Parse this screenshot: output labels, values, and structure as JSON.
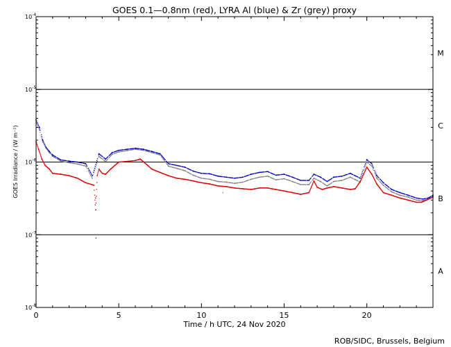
{
  "chart_data": {
    "type": "scatter",
    "title": "GOES 0.1—0.8nm (red), LYRA Al (blue) & Zr (grey) proxy",
    "xlabel": "Time / h UTC, 24 Nov 2020",
    "ylabel": "GOES Irradiance / (W m⁻²)",
    "credit": "ROB/SIDC, Brussels, Belgium",
    "xlim": [
      0,
      24
    ],
    "ylim_log10": [
      -8,
      -4
    ],
    "y_scale": "log",
    "x_ticks": [
      0,
      5,
      10,
      15,
      20
    ],
    "x_tick_labels": [
      "0",
      "5",
      "10",
      "15",
      "20"
    ],
    "y_ticks_log10": [
      -8,
      -7,
      -6,
      -5,
      -4
    ],
    "y_tick_labels": [
      {
        "base": "10",
        "exp": "-8"
      },
      {
        "base": "10",
        "exp": "-7"
      },
      {
        "base": "10",
        "exp": "-6"
      },
      {
        "base": "10",
        "exp": "-5"
      },
      {
        "base": "10",
        "exp": "-4"
      }
    ],
    "class_lines_log10": [
      -7,
      -6,
      -5
    ],
    "flare_classes": [
      {
        "label": "A",
        "log10": -7.5
      },
      {
        "label": "B",
        "log10": -6.5
      },
      {
        "label": "C",
        "log10": -5.5
      },
      {
        "label": "M",
        "log10": -4.5
      }
    ],
    "series": [
      {
        "name": "GOES 0.1-0.8nm",
        "color": "#e00000",
        "x": [
          0.0,
          0.15,
          0.35,
          0.55,
          0.8,
          1.0,
          1.5,
          2.0,
          2.5,
          3.0,
          3.5,
          3.6,
          3.7,
          3.8,
          4.0,
          4.2,
          4.5,
          5.0,
          5.5,
          6.0,
          6.3,
          6.7,
          7.0,
          7.5,
          8.0,
          8.5,
          9.0,
          9.5,
          10.0,
          10.5,
          11.0,
          11.5,
          12.0,
          12.5,
          13.0,
          13.5,
          14.0,
          14.5,
          15.0,
          15.5,
          16.0,
          16.5,
          16.8,
          17.0,
          17.3,
          17.6,
          18.0,
          18.5,
          19.0,
          19.3,
          19.6,
          20.0,
          20.3,
          20.6,
          21.0,
          21.5,
          22.0,
          22.5,
          23.0,
          23.3,
          23.6,
          24.0
        ],
        "y": [
          1.9e-06,
          1.5e-06,
          1.1e-06,
          9e-07,
          8e-07,
          7e-07,
          6.8e-07,
          6.5e-07,
          6e-07,
          5.2e-07,
          4.8e-07,
          2.2e-07,
          6.5e-07,
          8e-07,
          7e-07,
          6.8e-07,
          8e-07,
          1e-06,
          1.02e-06,
          1.05e-06,
          1.1e-06,
          9.2e-07,
          8e-07,
          7.2e-07,
          6.5e-07,
          6e-07,
          5.8e-07,
          5.5e-07,
          5.2e-07,
          5e-07,
          4.7e-07,
          4.6e-07,
          4.4e-07,
          4.3e-07,
          4.2e-07,
          4.4e-07,
          4.4e-07,
          4.2e-07,
          4e-07,
          3.8e-07,
          3.6e-07,
          3.8e-07,
          5.5e-07,
          4.5e-07,
          4.2e-07,
          4.4e-07,
          4.6e-07,
          4.4e-07,
          4.2e-07,
          4.3e-07,
          5.4e-07,
          8.5e-07,
          6.8e-07,
          5e-07,
          3.8e-07,
          3.5e-07,
          3.2e-07,
          3e-07,
          2.8e-07,
          2.8e-07,
          3e-07,
          3.3e-07
        ]
      },
      {
        "name": "LYRA Al proxy",
        "color": "#0000c0",
        "x": [
          0.0,
          0.2,
          0.4,
          0.6,
          0.8,
          1.0,
          1.5,
          2.0,
          2.5,
          3.0,
          3.4,
          3.8,
          4.2,
          4.6,
          5.0,
          5.5,
          6.0,
          6.5,
          7.0,
          7.5,
          8.0,
          8.5,
          9.0,
          9.5,
          10.0,
          10.5,
          11.0,
          11.5,
          12.0,
          12.5,
          13.0,
          13.5,
          14.0,
          14.5,
          15.0,
          15.5,
          16.0,
          16.5,
          16.8,
          17.2,
          17.6,
          18.0,
          18.5,
          19.0,
          19.6,
          20.0,
          20.3,
          20.6,
          21.0,
          21.5,
          22.0,
          22.5,
          23.0,
          23.4,
          23.7,
          24.0
        ],
        "y": [
          3.8e-06,
          3e-06,
          2e-06,
          1.6e-06,
          1.4e-06,
          1.25e-06,
          1.07e-06,
          1.03e-06,
          1e-06,
          9.5e-07,
          6.5e-07,
          1.3e-06,
          1.1e-06,
          1.35e-06,
          1.45e-06,
          1.5e-06,
          1.55e-06,
          1.5e-06,
          1.4e-06,
          1.3e-06,
          9.5e-07,
          9e-07,
          8.5e-07,
          7.5e-07,
          7e-07,
          6.9e-07,
          6.4e-07,
          6.2e-07,
          6e-07,
          6.2e-07,
          6.8e-07,
          7.2e-07,
          7.4e-07,
          6.6e-07,
          6.8e-07,
          6.2e-07,
          5.6e-07,
          5.6e-07,
          6.8e-07,
          6.2e-07,
          5.4e-07,
          6.2e-07,
          6.4e-07,
          7e-07,
          6e-07,
          1.08e-06,
          9.5e-07,
          6.5e-07,
          5.2e-07,
          4.2e-07,
          3.8e-07,
          3.5e-07,
          3.2e-07,
          3.1e-07,
          3.2e-07,
          3.5e-07
        ]
      },
      {
        "name": "LYRA Zr proxy",
        "color": "#808080",
        "x": [
          0.0,
          0.2,
          0.4,
          0.6,
          0.8,
          1.0,
          1.5,
          2.0,
          2.5,
          3.0,
          3.4,
          3.8,
          4.2,
          4.6,
          5.0,
          5.5,
          6.0,
          6.5,
          7.0,
          7.5,
          8.0,
          8.5,
          9.0,
          9.5,
          10.0,
          10.5,
          11.0,
          11.5,
          12.0,
          12.5,
          13.0,
          13.5,
          14.0,
          14.5,
          15.0,
          15.5,
          16.0,
          16.5,
          16.8,
          17.2,
          17.6,
          18.0,
          18.5,
          19.0,
          19.6,
          20.0,
          20.3,
          20.6,
          21.0,
          21.5,
          22.0,
          22.5,
          23.0,
          23.4,
          23.7,
          24.0
        ],
        "y": [
          3.5e-06,
          2.8e-06,
          1.9e-06,
          1.55e-06,
          1.35e-06,
          1.2e-06,
          1.03e-06,
          9.8e-07,
          9.4e-07,
          8.8e-07,
          6e-07,
          1.2e-06,
          1.02e-06,
          1.28e-06,
          1.38e-06,
          1.44e-06,
          1.5e-06,
          1.45e-06,
          1.35e-06,
          1.25e-06,
          8.8e-07,
          8.2e-07,
          7.6e-07,
          6.6e-07,
          6e-07,
          5.8e-07,
          5.4e-07,
          5.3e-07,
          5.1e-07,
          5.3e-07,
          5.8e-07,
          6.2e-07,
          6.4e-07,
          5.7e-07,
          5.9e-07,
          5.4e-07,
          4.9e-07,
          4.9e-07,
          6e-07,
          5.4e-07,
          4.7e-07,
          5.4e-07,
          5.6e-07,
          6.2e-07,
          5.3e-07,
          1e-06,
          8.8e-07,
          6e-07,
          4.8e-07,
          3.9e-07,
          3.5e-07,
          3.3e-07,
          3e-07,
          2.95e-07,
          3.1e-07,
          3.4e-07
        ]
      }
    ],
    "outliers": [
      {
        "series": "GOES 0.1-0.8nm",
        "x": 3.62,
        "y": 9e-08
      },
      {
        "series": "GOES 0.1-0.8nm",
        "x": 3.6,
        "y": 3.2e-07
      },
      {
        "series": "LYRA Zr proxy",
        "x": 11.3,
        "y": 3.8e-07
      },
      {
        "series": "LYRA Zr proxy",
        "x": 12.6,
        "y": 4.2e-07
      }
    ]
  }
}
